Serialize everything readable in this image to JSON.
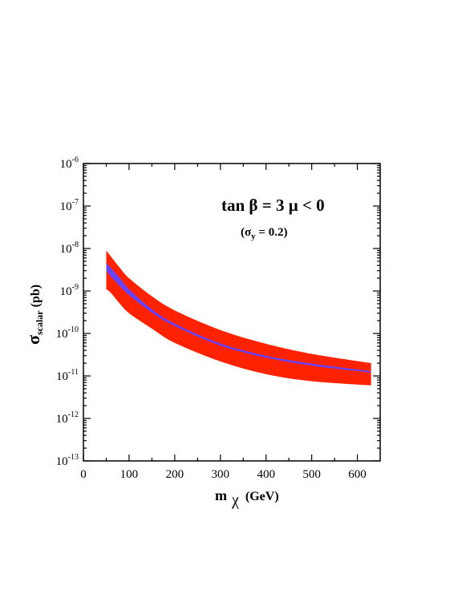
{
  "chart_data": {
    "type": "area",
    "title": "",
    "xlabel": {
      "main": "m",
      "sub": "χ",
      "unit": "(GeV)"
    },
    "ylabel": {
      "main": "σ",
      "sub": "scalar",
      "unit": "(pb)"
    },
    "annotations": {
      "line1": "tan β = 3  μ < 0",
      "line2_open": "(σ",
      "line2_sub": "y",
      "line2_rest": " = 0.2)"
    },
    "xlim": [
      0,
      650
    ],
    "ylim": [
      1e-13,
      1e-06
    ],
    "yscale": "log",
    "x_ticks": [
      "0",
      "100",
      "200",
      "300",
      "400",
      "500",
      "600"
    ],
    "y_ticks": [
      {
        "base": "10",
        "exp": "-13"
      },
      {
        "base": "10",
        "exp": "-12"
      },
      {
        "base": "10",
        "exp": "-11"
      },
      {
        "base": "10",
        "exp": "-10"
      },
      {
        "base": "10",
        "exp": "-9"
      },
      {
        "base": "10",
        "exp": "-8"
      },
      {
        "base": "10",
        "exp": "-7"
      },
      {
        "base": "10",
        "exp": "-6"
      }
    ],
    "grid": false,
    "legend": "none",
    "series": [
      {
        "role": "outer-band",
        "color": "#ff2200",
        "x": [
          50,
          60,
          80,
          100,
          150,
          200,
          300,
          400,
          500,
          630
        ],
        "upper": [
          9e-09,
          6.5e-09,
          3.5e-09,
          2e-09,
          7.5e-10,
          3.5e-10,
          1.2e-10,
          5.7e-11,
          3.3e-11,
          2e-11
        ],
        "lower": [
          1.1e-09,
          9e-10,
          5e-10,
          3e-10,
          1.3e-10,
          6e-11,
          2.2e-11,
          1.1e-11,
          7.5e-12,
          6e-12
        ]
      },
      {
        "role": "inner-band",
        "color": "#6644ff",
        "x": [
          50,
          60,
          80,
          100,
          150,
          200,
          300,
          400,
          500,
          630
        ],
        "upper": [
          4.5e-09,
          3.5e-09,
          2e-09,
          1.1e-09,
          3.7e-10,
          1.7e-10,
          5.8e-11,
          3e-11,
          1.95e-11,
          1.3e-11
        ],
        "lower": [
          3e-09,
          2.2e-09,
          1.3e-09,
          8e-10,
          3.1e-10,
          1.5e-10,
          5.2e-11,
          2.7e-11,
          1.75e-11,
          1.2e-11
        ]
      }
    ]
  }
}
